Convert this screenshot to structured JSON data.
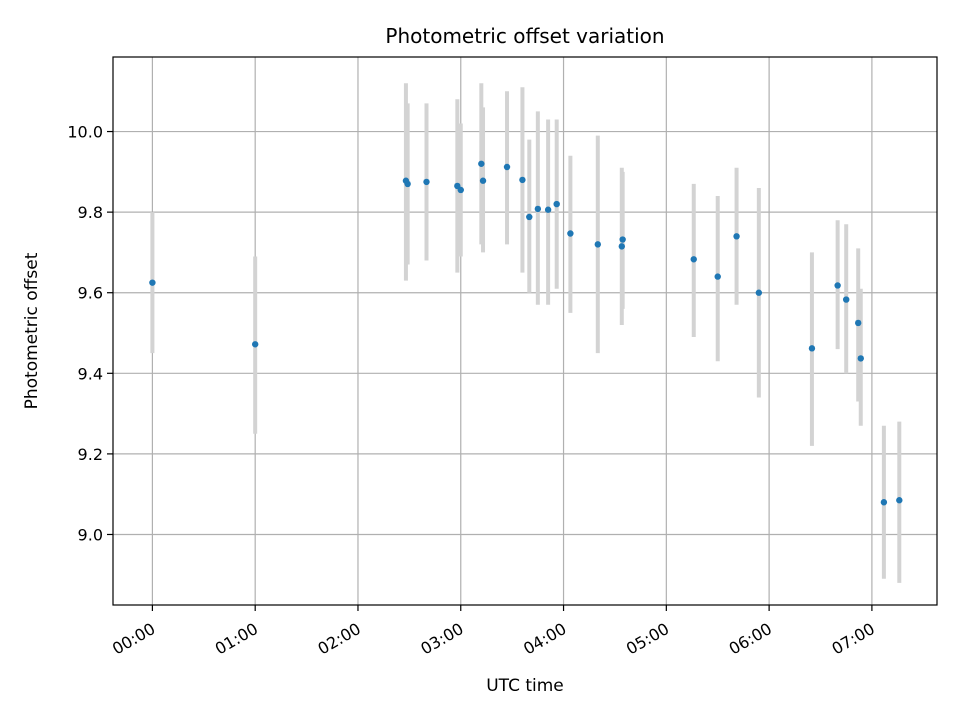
{
  "chart_data": {
    "type": "scatter",
    "title": "Photometric offset variation",
    "xlabel": "UTC time",
    "ylabel": "Photometric offset",
    "xlim_minutes": [
      -23,
      458
    ],
    "ylim": [
      8.825,
      10.185
    ],
    "grid": true,
    "x_ticks": [
      {
        "minutes": 0,
        "label": "00:00"
      },
      {
        "minutes": 60,
        "label": "01:00"
      },
      {
        "minutes": 120,
        "label": "02:00"
      },
      {
        "minutes": 180,
        "label": "03:00"
      },
      {
        "minutes": 240,
        "label": "04:00"
      },
      {
        "minutes": 300,
        "label": "05:00"
      },
      {
        "minutes": 360,
        "label": "06:00"
      },
      {
        "minutes": 420,
        "label": "07:00"
      }
    ],
    "y_ticks": [
      {
        "value": 9.0,
        "label": "9.0"
      },
      {
        "value": 9.2,
        "label": "9.2"
      },
      {
        "value": 9.4,
        "label": "9.4"
      },
      {
        "value": 9.6,
        "label": "9.6"
      },
      {
        "value": 9.8,
        "label": "9.8"
      },
      {
        "value": 10.0,
        "label": "10.0"
      }
    ],
    "colors": {
      "point": "#1f77b4",
      "errorbar": "#d3d3d3",
      "grid": "#b0b0b0"
    },
    "points": [
      {
        "t": 0,
        "y": 9.625,
        "lo": 9.45,
        "hi": 9.8
      },
      {
        "t": 60,
        "y": 9.472,
        "lo": 9.25,
        "hi": 9.69
      },
      {
        "t": 148,
        "y": 9.878,
        "lo": 9.63,
        "hi": 10.12
      },
      {
        "t": 149,
        "y": 9.87,
        "lo": 9.67,
        "hi": 10.07
      },
      {
        "t": 160,
        "y": 9.875,
        "lo": 9.68,
        "hi": 10.07
      },
      {
        "t": 178,
        "y": 9.865,
        "lo": 9.65,
        "hi": 10.08
      },
      {
        "t": 180,
        "y": 9.855,
        "lo": 9.69,
        "hi": 10.02
      },
      {
        "t": 192,
        "y": 9.92,
        "lo": 9.72,
        "hi": 10.12
      },
      {
        "t": 193,
        "y": 9.878,
        "lo": 9.7,
        "hi": 10.06
      },
      {
        "t": 207,
        "y": 9.912,
        "lo": 9.72,
        "hi": 10.1
      },
      {
        "t": 216,
        "y": 9.88,
        "lo": 9.65,
        "hi": 10.11
      },
      {
        "t": 220,
        "y": 9.788,
        "lo": 9.6,
        "hi": 9.98
      },
      {
        "t": 225,
        "y": 9.808,
        "lo": 9.57,
        "hi": 10.05
      },
      {
        "t": 231,
        "y": 9.806,
        "lo": 9.57,
        "hi": 10.03
      },
      {
        "t": 236,
        "y": 9.82,
        "lo": 9.61,
        "hi": 10.03
      },
      {
        "t": 244,
        "y": 9.747,
        "lo": 9.55,
        "hi": 9.94
      },
      {
        "t": 260,
        "y": 9.72,
        "lo": 9.45,
        "hi": 9.99
      },
      {
        "t": 274,
        "y": 9.715,
        "lo": 9.52,
        "hi": 9.91
      },
      {
        "t": 274.5,
        "y": 9.732,
        "lo": 9.56,
        "hi": 9.9
      },
      {
        "t": 316,
        "y": 9.683,
        "lo": 9.49,
        "hi": 9.87
      },
      {
        "t": 330,
        "y": 9.64,
        "lo": 9.43,
        "hi": 9.84
      },
      {
        "t": 341,
        "y": 9.74,
        "lo": 9.57,
        "hi": 9.91
      },
      {
        "t": 354,
        "y": 9.6,
        "lo": 9.34,
        "hi": 9.86
      },
      {
        "t": 385,
        "y": 9.462,
        "lo": 9.22,
        "hi": 9.7
      },
      {
        "t": 400,
        "y": 9.618,
        "lo": 9.46,
        "hi": 9.78
      },
      {
        "t": 405,
        "y": 9.583,
        "lo": 9.4,
        "hi": 9.77
      },
      {
        "t": 412,
        "y": 9.525,
        "lo": 9.33,
        "hi": 9.71
      },
      {
        "t": 413.5,
        "y": 9.437,
        "lo": 9.27,
        "hi": 9.61
      },
      {
        "t": 427,
        "y": 9.08,
        "lo": 8.89,
        "hi": 9.27
      },
      {
        "t": 436,
        "y": 9.085,
        "lo": 8.88,
        "hi": 9.28
      }
    ]
  }
}
